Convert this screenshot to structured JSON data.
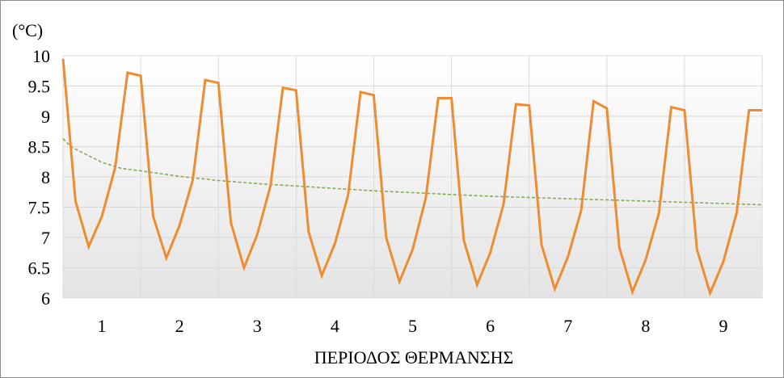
{
  "chart_data": {
    "type": "line",
    "title": "",
    "xlabel": "ΠΕΡΙΟΔΟΣ ΘΕΡΜΑΝΣΗΣ",
    "ylabel": "(°C)",
    "ylim": [
      6,
      10
    ],
    "xlim": [
      0.5,
      9.5
    ],
    "y_ticks": [
      "6",
      "6.5",
      "7",
      "7.5",
      "8",
      "8.5",
      "9",
      "9.5",
      "10"
    ],
    "x_ticks": [
      "1",
      "2",
      "3",
      "4",
      "5",
      "6",
      "7",
      "8",
      "9"
    ],
    "grid": true,
    "legend": "none",
    "series": [
      {
        "color": "#ed8c30",
        "style": "solid",
        "x": [
          0.5,
          0.66,
          0.83,
          1.0,
          1.17,
          1.33,
          1.5,
          1.66,
          1.83,
          2.0,
          2.17,
          2.33,
          2.5,
          2.66,
          2.83,
          3.0,
          3.17,
          3.33,
          3.5,
          3.66,
          3.83,
          4.0,
          4.17,
          4.33,
          4.5,
          4.66,
          4.83,
          5.0,
          5.17,
          5.33,
          5.5,
          5.66,
          5.83,
          6.0,
          6.17,
          6.33,
          6.5,
          6.66,
          6.83,
          7.0,
          7.17,
          7.33,
          7.5,
          7.66,
          7.83,
          8.0,
          8.17,
          8.33,
          8.5,
          8.66,
          8.83,
          9.0,
          9.17,
          9.33,
          9.5
        ],
        "values": [
          9.95,
          7.6,
          6.85,
          7.35,
          8.15,
          9.72,
          9.67,
          7.35,
          6.66,
          7.2,
          7.95,
          9.6,
          9.55,
          7.25,
          6.5,
          7.05,
          7.85,
          9.47,
          9.43,
          7.1,
          6.37,
          6.9,
          7.7,
          9.4,
          9.35,
          7.0,
          6.27,
          6.8,
          7.65,
          9.3,
          9.3,
          6.95,
          6.22,
          6.75,
          7.55,
          9.2,
          9.18,
          6.88,
          6.15,
          6.68,
          7.45,
          9.25,
          9.13,
          6.84,
          6.1,
          6.63,
          7.4,
          9.15,
          9.1,
          6.8,
          6.08,
          6.6,
          7.4,
          9.1,
          9.1
        ]
      },
      {
        "color": "#8aaa52",
        "style": "dashed",
        "x": [
          0.5,
          0.6,
          0.75,
          1.0,
          1.25,
          1.5,
          2.0,
          2.5,
          3.0,
          3.5,
          4.0,
          4.5,
          5.0,
          5.5,
          6.0,
          6.5,
          7.0,
          7.5,
          8.0,
          8.5,
          9.0,
          9.5
        ],
        "values": [
          8.63,
          8.5,
          8.4,
          8.24,
          8.14,
          8.1,
          8.01,
          7.94,
          7.89,
          7.85,
          7.81,
          7.77,
          7.74,
          7.71,
          7.68,
          7.66,
          7.64,
          7.62,
          7.6,
          7.58,
          7.56,
          7.54
        ]
      }
    ]
  }
}
